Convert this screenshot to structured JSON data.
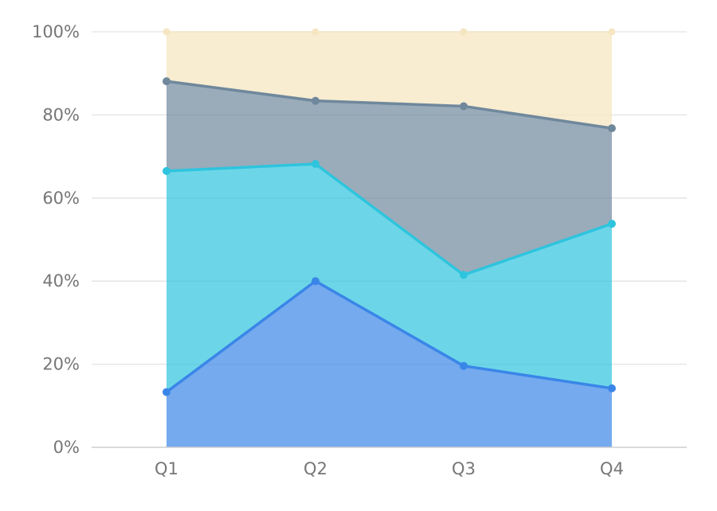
{
  "chart_data": {
    "type": "area",
    "stacked": true,
    "normalized": true,
    "categories": [
      "Q1",
      "Q2",
      "Q3",
      "Q4"
    ],
    "y_ticks": [
      "0%",
      "20%",
      "40%",
      "60%",
      "80%",
      "100%"
    ],
    "ylim": [
      0,
      100
    ],
    "grid": true,
    "series": [
      {
        "values": [
          13.3,
          40.0,
          19.6,
          14.2
        ],
        "color": "#3a86e8"
      },
      {
        "values": [
          53.2,
          28.2,
          21.9,
          39.6
        ],
        "color": "#2ec4de"
      },
      {
        "values": [
          21.6,
          15.2,
          40.6,
          23.0
        ],
        "color": "#6f889c"
      },
      {
        "values": [
          11.9,
          16.6,
          17.9,
          23.2
        ],
        "color": "#f5e6c2"
      }
    ]
  }
}
